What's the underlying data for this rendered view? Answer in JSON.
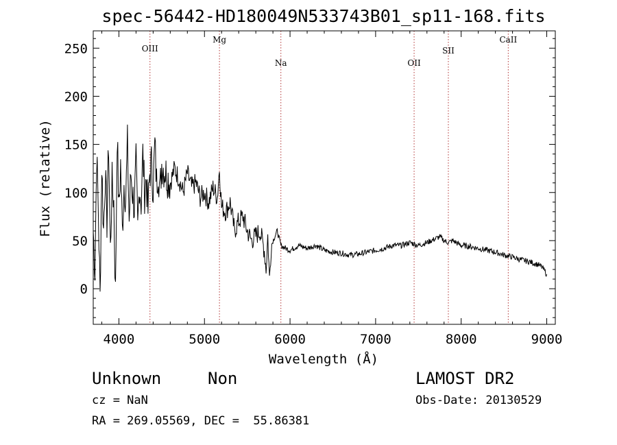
{
  "chart_data": {
    "type": "line",
    "title": "spec-56442-HD180049N533743B01_sp11-168.fits",
    "xlabel": "Wavelength (Å)",
    "ylabel": "Flux (relative)",
    "xlim": [
      3700,
      9100
    ],
    "ylim": [
      -37,
      268
    ],
    "xticks": [
      4000,
      5000,
      6000,
      7000,
      8000,
      9000
    ],
    "yticks": [
      0,
      50,
      100,
      150,
      200,
      250
    ],
    "grid": false,
    "lines": [
      {
        "label": "OIII",
        "wavelength": 4363
      },
      {
        "label": "Mg",
        "wavelength": 5175
      },
      {
        "label": "Na",
        "wavelength": 5893
      },
      {
        "label": "OII",
        "wavelength": 7450
      },
      {
        "label": "SII",
        "wavelength": 7850
      },
      {
        "label": "CaII",
        "wavelength": 8550
      }
    ],
    "series": [
      {
        "x": [
          3700,
          3720,
          3740,
          3760,
          3780,
          3800,
          3820,
          3840,
          3860,
          3880,
          3900,
          3920,
          3940,
          3960,
          3980,
          4000,
          4020,
          4040,
          4060,
          4080,
          4100,
          4120,
          4140,
          4160,
          4180,
          4200,
          4220,
          4240,
          4260,
          4280,
          4300,
          4320,
          4340,
          4360,
          4380,
          4400,
          4420,
          4440,
          4460,
          4480,
          4500,
          4550,
          4600,
          4650,
          4700,
          4750,
          4800,
          4850,
          4900,
          4950,
          5000,
          5050,
          5100,
          5150,
          5175,
          5200,
          5250,
          5300,
          5350,
          5400,
          5450,
          5500,
          5550,
          5600,
          5650,
          5700,
          5720,
          5740,
          5760,
          5780,
          5800,
          5850,
          5893,
          5950,
          6000,
          6100,
          6200,
          6300,
          6400,
          6500,
          6600,
          6700,
          6800,
          6900,
          7000,
          7100,
          7200,
          7300,
          7400,
          7500,
          7600,
          7700,
          7750,
          7800,
          7850,
          7900,
          8000,
          8100,
          8200,
          8300,
          8400,
          8500,
          8600,
          8700,
          8800,
          8900,
          8950,
          9000
        ],
        "y": [
          60,
          20,
          140,
          80,
          -10,
          130,
          60,
          120,
          70,
          150,
          40,
          110,
          90,
          -5,
          160,
          80,
          130,
          60,
          110,
          95,
          150,
          70,
          120,
          100,
          85,
          130,
          60,
          110,
          90,
          140,
          100,
          115,
          80,
          120,
          130,
          105,
          150,
          110,
          125,
          100,
          130,
          120,
          110,
          125,
          115,
          100,
          120,
          105,
          110,
          95,
          100,
          90,
          105,
          95,
          125,
          85,
          80,
          90,
          60,
          70,
          75,
          60,
          50,
          55,
          60,
          40,
          20,
          55,
          10,
          45,
          50,
          60,
          45,
          42,
          40,
          45,
          42,
          45,
          40,
          38,
          37,
          35,
          36,
          38,
          40,
          42,
          45,
          45,
          48,
          45,
          48,
          52,
          54,
          50,
          48,
          50,
          45,
          44,
          42,
          40,
          38,
          35,
          33,
          30,
          28,
          25,
          22,
          15
        ]
      }
    ]
  },
  "info": {
    "object_class": "Unknown",
    "object_subclass": "Non",
    "survey": "LAMOST DR2",
    "redshift": "cz = NaN",
    "obs_date": "Obs-Date: 20130529",
    "coords": "RA = 269.05569, DEC =  55.86381"
  }
}
